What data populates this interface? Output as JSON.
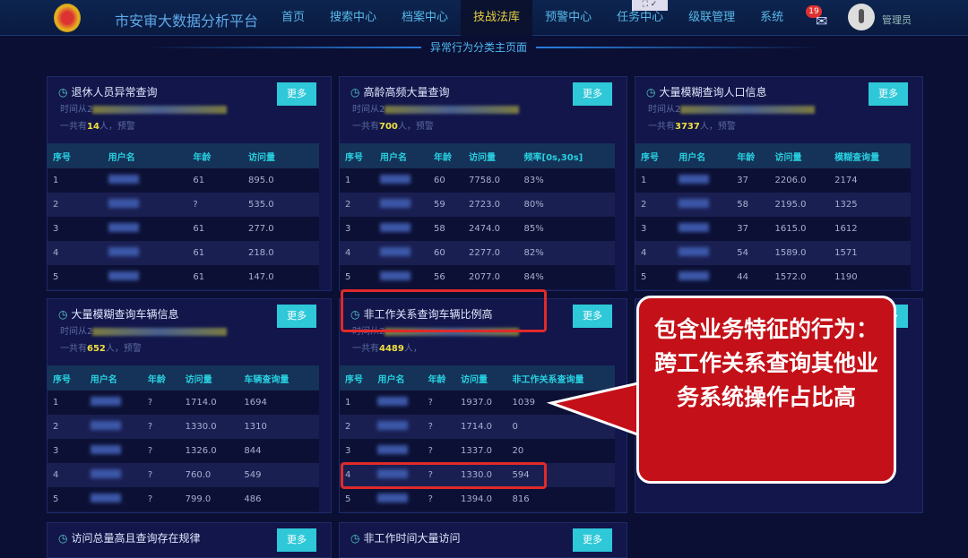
{
  "header": {
    "title": "市安审大数据分析平台",
    "nav": [
      "首页",
      "搜索中心",
      "档案中心",
      "技战法库",
      "预警中心",
      "任务中心",
      "级联管理",
      "系统"
    ],
    "active": 3,
    "badge": "19",
    "user": "管理员",
    "window_ctl": "⛶ ✓"
  },
  "subtitle": "异常行为分类主页面",
  "more_label": "更多",
  "time_prefix": "时间从2",
  "cards": [
    {
      "title": "退休人员异常查询",
      "count_pre": "一共有",
      "count": "14",
      "count_post": "人，预警",
      "headers": [
        "序号",
        "用户名",
        "年龄",
        "访问量"
      ],
      "rows": [
        [
          "1",
          "",
          "61",
          "895.0"
        ],
        [
          "2",
          "",
          "?",
          "535.0"
        ],
        [
          "3",
          "",
          "61",
          "277.0"
        ],
        [
          "4",
          "",
          "61",
          "218.0"
        ],
        [
          "5",
          "",
          "61",
          "147.0"
        ]
      ]
    },
    {
      "title": "高龄高频大量查询",
      "count_pre": "一共有",
      "count": "700",
      "count_post": "人，预警",
      "headers": [
        "序号",
        "用户名",
        "年龄",
        "访问量",
        "频率[0s,30s]"
      ],
      "rows": [
        [
          "1",
          "",
          "60",
          "7758.0",
          "83%"
        ],
        [
          "2",
          "",
          "59",
          "2723.0",
          "80%"
        ],
        [
          "3",
          "",
          "58",
          "2474.0",
          "85%"
        ],
        [
          "4",
          "",
          "60",
          "2277.0",
          "82%"
        ],
        [
          "5",
          "",
          "56",
          "2077.0",
          "84%"
        ]
      ]
    },
    {
      "title": "大量模糊查询人口信息",
      "count_pre": "一共有",
      "count": "3737",
      "count_post": "人，预警",
      "headers": [
        "序号",
        "用户名",
        "年龄",
        "访问量",
        "模糊查询量"
      ],
      "rows": [
        [
          "1",
          "",
          "37",
          "2206.0",
          "2174"
        ],
        [
          "2",
          "",
          "58",
          "2195.0",
          "1325"
        ],
        [
          "3",
          "",
          "37",
          "1615.0",
          "1612"
        ],
        [
          "4",
          "",
          "54",
          "1589.0",
          "1571"
        ],
        [
          "5",
          "",
          "44",
          "1572.0",
          "1190"
        ]
      ]
    },
    {
      "title": "大量模糊查询车辆信息",
      "count_pre": "一共有",
      "count": "652",
      "count_post": "人，预警",
      "headers": [
        "序号",
        "用户名",
        "年龄",
        "访问量",
        "车辆查询量"
      ],
      "rows": [
        [
          "1",
          "",
          "?",
          "1714.0",
          "1694"
        ],
        [
          "2",
          "",
          "?",
          "1330.0",
          "1310"
        ],
        [
          "3",
          "",
          "?",
          "1326.0",
          "844"
        ],
        [
          "4",
          "",
          "?",
          "760.0",
          "549"
        ],
        [
          "5",
          "",
          "?",
          "799.0",
          "486"
        ]
      ]
    },
    {
      "title": "非工作关系查询车辆比例高",
      "count_pre": "一共有",
      "count": "4489",
      "count_post": "人，",
      "headers": [
        "序号",
        "用户名",
        "年龄",
        "访问量",
        "非工作关系查询量"
      ],
      "rows": [
        [
          "1",
          "",
          "?",
          "1937.0",
          "1039"
        ],
        [
          "2",
          "",
          "?",
          "1714.0",
          "0"
        ],
        [
          "3",
          "",
          "?",
          "1337.0",
          "20"
        ],
        [
          "4",
          "",
          "?",
          "1330.0",
          "594"
        ],
        [
          "5",
          "",
          "?",
          "1394.0",
          "816"
        ]
      ]
    },
    {
      "title": "",
      "count_pre": "",
      "count": "",
      "count_post": "",
      "headers": [],
      "rows": []
    },
    {
      "title": "访问总量高且查询存在规律",
      "count_pre": "",
      "count": "",
      "count_post": "",
      "headers": [],
      "rows": []
    },
    {
      "title": "非工作时间大量访问",
      "count_pre": "",
      "count": "",
      "count_post": "",
      "headers": [],
      "rows": []
    }
  ],
  "callout": "包含业务特征的行为：跨工作关系查询其他业务系统操作占比高",
  "colors": {
    "accent": "#2ec8d8",
    "highlight": "#e02a2a",
    "callout": "#c41018"
  }
}
